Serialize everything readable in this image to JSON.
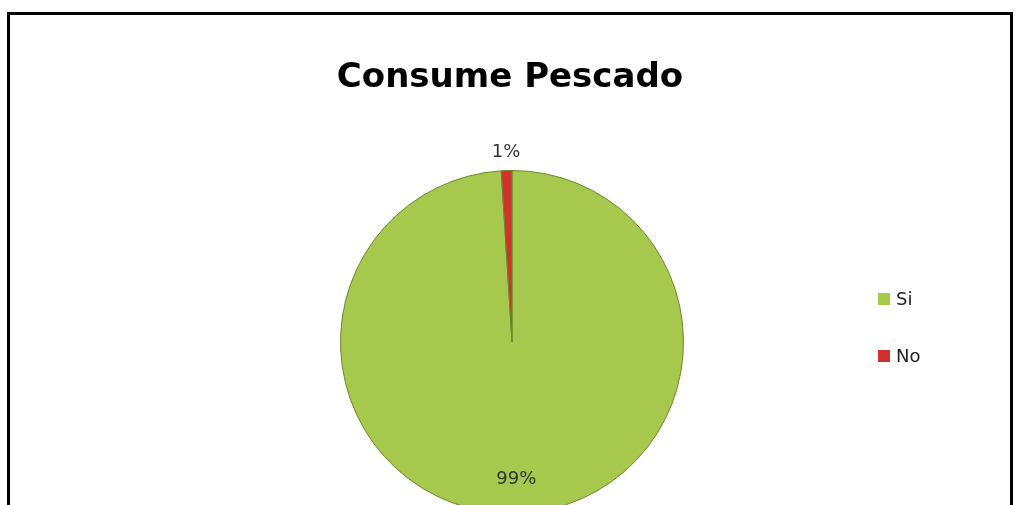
{
  "chart_data": {
    "type": "pie",
    "title": "Consume Pescado",
    "categories": [
      "Si",
      "No"
    ],
    "values": [
      99,
      1
    ],
    "colors": [
      "#a6c84c",
      "#d2322d"
    ],
    "value_labels": [
      "99%",
      "1%"
    ],
    "legend": "right"
  }
}
